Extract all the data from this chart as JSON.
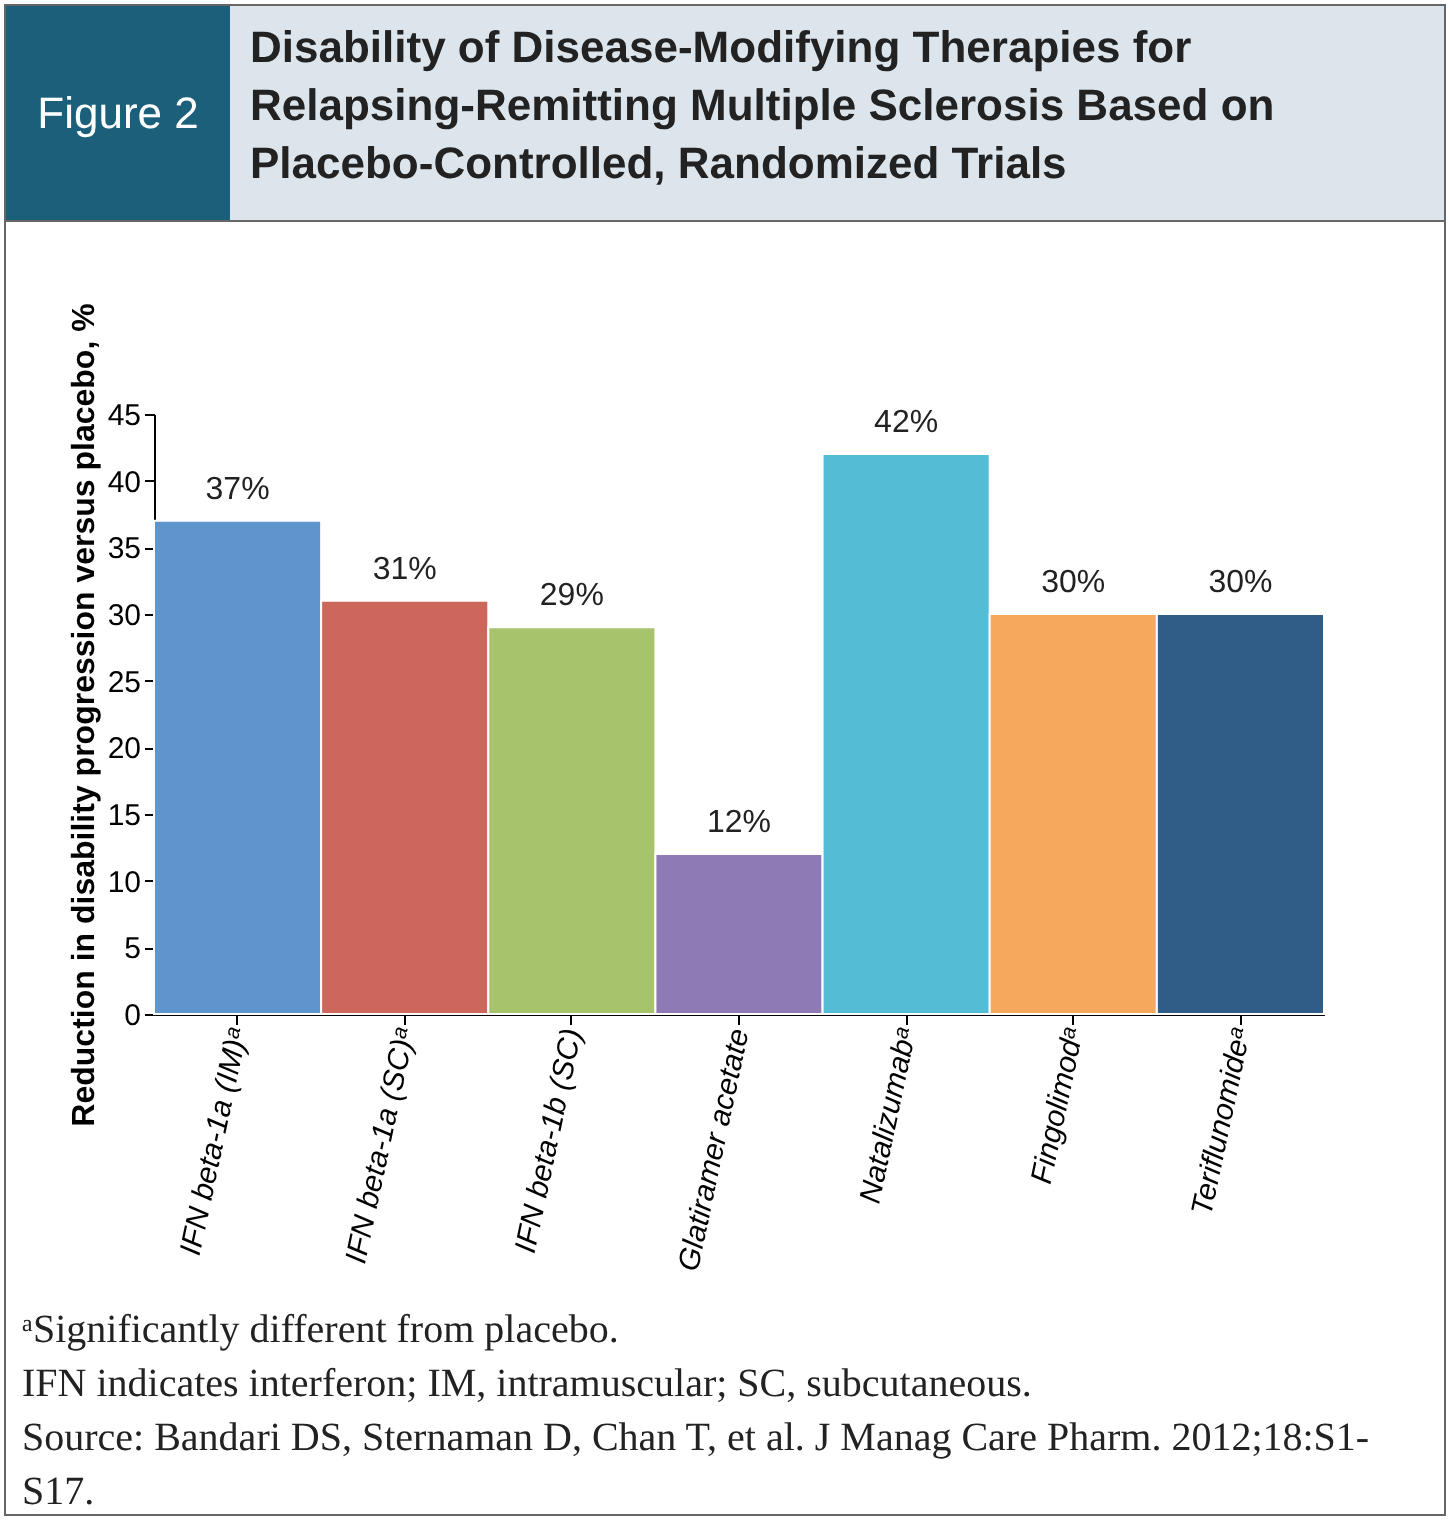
{
  "chart_data": {
    "type": "bar",
    "title": "Disability of Disease-Modifying Therapies for Relapsing-Remitting Multiple Sclerosis Based on Placebo-Controlled, Randomized Trials",
    "subtitle": "Figure 2",
    "categories": [
      "IFN beta-1a (IM)ᵃ",
      "IFN beta-1a (SC)ᵃ",
      "IFN beta-1b (SC)",
      "Glatiramer acetate",
      "Natalizumabᵃ",
      "Fingolimodᵃ",
      "Teriflunomideᵃ"
    ],
    "values": [
      37,
      31,
      29,
      12,
      42,
      30,
      30
    ],
    "value_labels": [
      "37%",
      "31%",
      "29%",
      "12%",
      "42%",
      "30%",
      "30%"
    ],
    "colors": [
      "#5f95cd",
      "#cd665b",
      "#a7c46c",
      "#8e7ab5",
      "#54bcd5",
      "#f6a95c",
      "#2f5d87"
    ],
    "ylabel": "Reduction in disability progression versus placebo, %",
    "ylim": [
      0,
      45
    ],
    "yticks": [
      0,
      5,
      10,
      15,
      20,
      25,
      30,
      35,
      40,
      45
    ],
    "annotations": [
      "ᵃSignificantly different from placebo.",
      "IFN indicates interferon; IM, intramuscular; SC, subcutaneous.",
      "Source: Bandari DS, Sternaman D, Chan T, et al. J Manag Care Pharm. 2012;18:S1-S17."
    ]
  }
}
